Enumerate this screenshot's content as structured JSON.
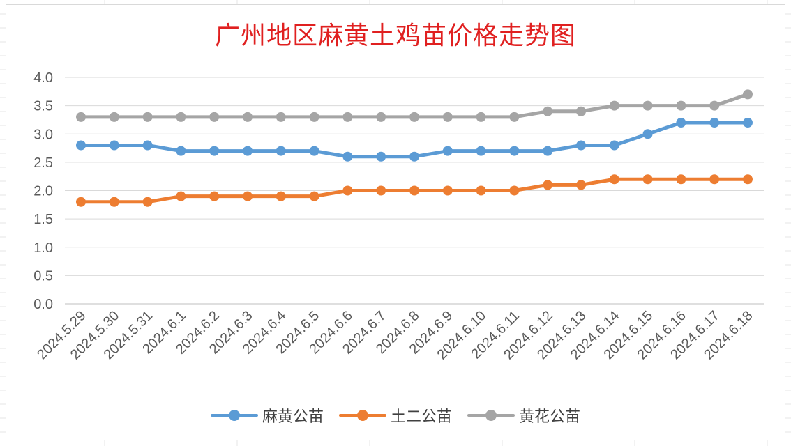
{
  "chart_data": {
    "type": "line",
    "title": "广州地区麻黄土鸡苗价格走势图",
    "categories": [
      "2024.5.29",
      "2024.5.30",
      "2024.5.31",
      "2024.6.1",
      "2024.6.2",
      "2024.6.3",
      "2024.6.4",
      "2024.6.5",
      "2024.6.6",
      "2024.6.7",
      "2024.6.8",
      "2024.6.9",
      "2024.6.10",
      "2024.6.11",
      "2024.6.12",
      "2024.6.13",
      "2024.6.14",
      "2024.6.15",
      "2024.6.16",
      "2024.6.17",
      "2024.6.18"
    ],
    "series": [
      {
        "name": "麻黄公苗",
        "color": "#5b9bd5",
        "values": [
          2.8,
          2.8,
          2.8,
          2.7,
          2.7,
          2.7,
          2.7,
          2.7,
          2.6,
          2.6,
          2.6,
          2.7,
          2.7,
          2.7,
          2.7,
          2.8,
          2.8,
          3.0,
          3.2,
          3.2,
          3.2
        ]
      },
      {
        "name": "土二公苗",
        "color": "#ed7d31",
        "values": [
          1.8,
          1.8,
          1.8,
          1.9,
          1.9,
          1.9,
          1.9,
          1.9,
          2.0,
          2.0,
          2.0,
          2.0,
          2.0,
          2.0,
          2.1,
          2.1,
          2.2,
          2.2,
          2.2,
          2.2,
          2.2
        ]
      },
      {
        "name": "黄花公苗",
        "color": "#a5a5a5",
        "values": [
          3.3,
          3.3,
          3.3,
          3.3,
          3.3,
          3.3,
          3.3,
          3.3,
          3.3,
          3.3,
          3.3,
          3.3,
          3.3,
          3.3,
          3.4,
          3.4,
          3.5,
          3.5,
          3.5,
          3.5,
          3.7
        ]
      }
    ],
    "yticks": [
      "0.0",
      "0.5",
      "1.0",
      "1.5",
      "2.0",
      "2.5",
      "3.0",
      "3.5",
      "4.0"
    ],
    "ylim": [
      0,
      4
    ],
    "grid": true,
    "legend": "bottom"
  }
}
